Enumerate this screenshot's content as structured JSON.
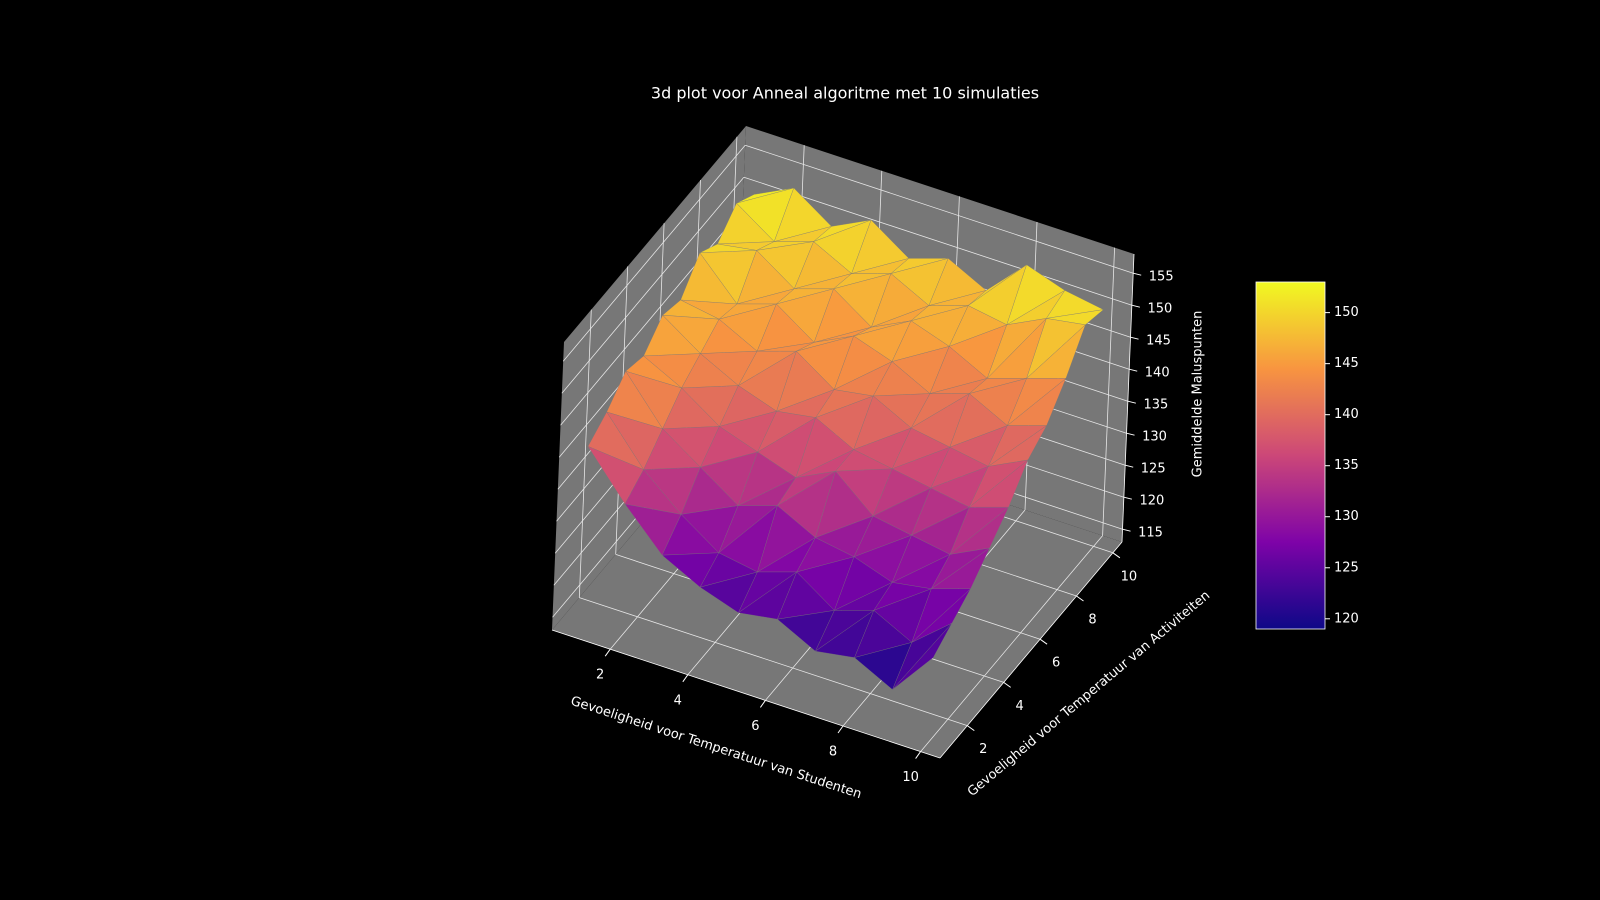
{
  "chart_data": {
    "type": "surface3d",
    "title": "3d plot voor Anneal algoritme met 10 simulaties",
    "xlabel": "Gevoeligheid voor Temperatuur van Studenten",
    "ylabel": "Gevoeligheid voor Temperatuur van Activiteiten",
    "zlabel": "Gemiddelde Maluspunten",
    "x": [
      1,
      2,
      3,
      4,
      5,
      6,
      7,
      8,
      9,
      10
    ],
    "y": [
      1,
      2,
      3,
      4,
      5,
      6,
      7,
      8,
      9,
      10
    ],
    "z": [
      [
        141,
        134,
        128,
        125,
        123,
        124,
        121,
        122,
        119,
        126
      ],
      [
        143,
        136,
        131,
        127,
        126,
        128,
        124,
        126,
        123,
        128
      ],
      [
        146,
        139,
        135,
        131,
        133,
        130,
        129,
        127,
        128,
        130
      ],
      [
        145,
        142,
        138,
        136,
        134,
        137,
        132,
        131,
        130,
        133
      ],
      [
        148,
        144,
        141,
        139,
        140,
        137,
        136,
        135,
        134,
        136
      ],
      [
        147,
        146,
        143,
        145,
        141,
        142,
        139,
        138,
        137,
        140
      ],
      [
        151,
        145,
        147,
        143,
        146,
        144,
        141,
        143,
        140,
        142
      ],
      [
        149,
        150,
        146,
        148,
        144,
        147,
        145,
        142,
        144,
        146
      ],
      [
        152,
        148,
        150,
        147,
        149,
        146,
        148,
        147,
        150,
        151
      ],
      [
        150,
        153,
        149,
        152,
        148,
        150,
        147,
        153,
        151,
        150
      ]
    ],
    "xlim": [
      0.5,
      10.5
    ],
    "ylim": [
      0.5,
      10.5
    ],
    "zlim": [
      113,
      158
    ],
    "xticks": [
      2,
      4,
      6,
      8,
      10
    ],
    "yticks": [
      2,
      4,
      6,
      8,
      10
    ],
    "zticks": [
      115,
      120,
      125,
      130,
      135,
      140,
      145,
      150,
      155
    ],
    "colormap": "plasma",
    "clim": [
      119,
      153
    ],
    "cticks": [
      120,
      125,
      130,
      135,
      140,
      145,
      150
    ]
  }
}
